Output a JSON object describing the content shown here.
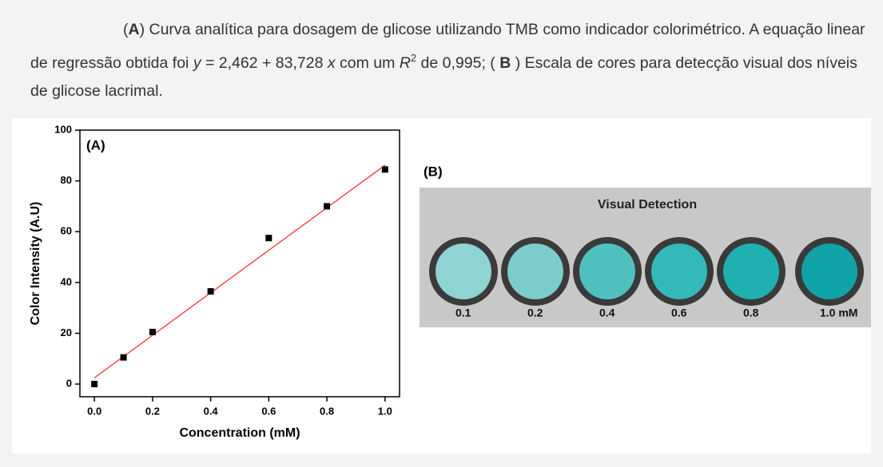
{
  "caption": {
    "parts": [
      "(",
      "A",
      ") Curva analítica para dosagem de glicose utilizando TMB como indicador colorimétrico. A equação linear de regressão obtida foi ",
      "y",
      " = 2,462 + 83,728 ",
      "x",
      " com um ",
      "R",
      "2",
      " de 0,995; ( ",
      "B",
      " ) Escala de cores para detecção visual dos níveis de glicose lacrimal."
    ]
  },
  "chart_data": {
    "type": "scatter",
    "panel_label": "(A)",
    "x_label": "Concentration (mM)",
    "y_label": "Color Intensity (A.U)",
    "x": [
      0,
      0.1,
      0.2,
      0.4,
      0.6,
      0.8,
      1.0
    ],
    "values": [
      0,
      10.5,
      20.5,
      36.5,
      57.5,
      70,
      84.5
    ],
    "color": "#000000",
    "fit": {
      "intercept": 2.462,
      "slope": 83.728,
      "color": "#ff3333"
    },
    "xlim": [
      -0.05,
      1.05
    ],
    "ylim": [
      -5,
      100
    ],
    "xticks": [
      {
        "value": 0,
        "label": "0.0"
      },
      {
        "value": 0.2,
        "label": "0.2"
      },
      {
        "value": 0.4,
        "label": "0.4"
      },
      {
        "value": 0.6,
        "label": "0.6"
      },
      {
        "value": 0.8,
        "label": "0.8"
      },
      {
        "value": 1,
        "label": "1.0"
      }
    ],
    "yticks": [
      0,
      20,
      40,
      60,
      80,
      100
    ]
  },
  "panel_b": {
    "label": "(B)",
    "title": "Visual Detection",
    "levels": [
      "0.1",
      "0.2",
      "0.4",
      "0.6",
      "0.8",
      "1.0 mM"
    ],
    "colors": [
      "#8fd3d3",
      "#7ccccc",
      "#4fc0c0",
      "#35b8ba",
      "#1fb0b2",
      "#10a3a8"
    ]
  }
}
